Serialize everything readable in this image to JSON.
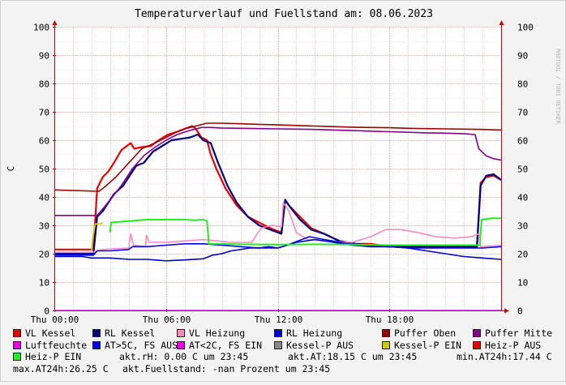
{
  "chart_data": {
    "type": "line",
    "title": "Temperaturverlauf und Fuellstand am: 08.06.2023",
    "ylabel": "C",
    "watermark": "RRDTOOL / TOBI OETIKER",
    "ylim": [
      0,
      100
    ],
    "y_ticks": [
      "0",
      "10",
      "20",
      "30",
      "40",
      "50",
      "60",
      "70",
      "80",
      "90",
      "100"
    ],
    "x_range_hours": [
      0,
      24
    ],
    "x_ticks": [
      {
        "label": "Thu 00:00",
        "hour": 0
      },
      {
        "label": "Thu 06:00",
        "hour": 6
      },
      {
        "label": "Thu 12:00",
        "hour": 12
      },
      {
        "label": "Thu 18:00",
        "hour": 18
      }
    ],
    "grid": true,
    "series": [
      {
        "name": "VL Kessel",
        "color": "#ee0000",
        "width": 2.2,
        "points": [
          [
            0,
            21.5
          ],
          [
            2.1,
            21.5
          ],
          [
            2.3,
            43
          ],
          [
            2.6,
            47
          ],
          [
            2.9,
            49
          ],
          [
            3.2,
            52
          ],
          [
            3.6,
            56.5
          ],
          [
            4.1,
            59
          ],
          [
            4.3,
            57
          ],
          [
            4.6,
            57.5
          ],
          [
            5.2,
            58
          ],
          [
            5.6,
            60
          ],
          [
            6.1,
            62
          ],
          [
            6.6,
            63
          ],
          [
            7,
            64
          ],
          [
            7.4,
            65
          ],
          [
            7.6,
            64
          ],
          [
            7.9,
            61
          ],
          [
            8.2,
            60
          ],
          [
            8.4,
            55
          ],
          [
            8.7,
            50
          ],
          [
            9.2,
            43
          ],
          [
            9.8,
            37
          ],
          [
            10.4,
            33
          ],
          [
            11,
            31
          ],
          [
            11.6,
            29
          ],
          [
            12.2,
            27.5
          ],
          [
            12.4,
            39
          ],
          [
            12.6,
            37
          ],
          [
            13.2,
            33
          ],
          [
            13.8,
            29
          ],
          [
            14.5,
            27
          ],
          [
            15.3,
            24.5
          ],
          [
            16.2,
            23.5
          ],
          [
            17,
            23.5
          ],
          [
            18,
            22.5
          ],
          [
            19.5,
            22.5
          ],
          [
            21,
            22.5
          ],
          [
            22.7,
            22.5
          ],
          [
            22.9,
            45
          ],
          [
            23.2,
            47
          ],
          [
            23.6,
            47.5
          ],
          [
            24,
            46
          ]
        ]
      },
      {
        "name": "RL Kessel",
        "color": "#000080",
        "width": 2.2,
        "points": [
          [
            0,
            20
          ],
          [
            2.1,
            20
          ],
          [
            2.3,
            33
          ],
          [
            2.6,
            35
          ],
          [
            2.9,
            38
          ],
          [
            3.2,
            41
          ],
          [
            3.7,
            44
          ],
          [
            4.1,
            48
          ],
          [
            4.4,
            51
          ],
          [
            4.8,
            52
          ],
          [
            5.3,
            56
          ],
          [
            5.8,
            58
          ],
          [
            6.3,
            60
          ],
          [
            6.8,
            60.5
          ],
          [
            7.3,
            61
          ],
          [
            7.7,
            62
          ],
          [
            8,
            60
          ],
          [
            8.4,
            59
          ],
          [
            8.8,
            52
          ],
          [
            9.3,
            44
          ],
          [
            9.8,
            38
          ],
          [
            10.4,
            33
          ],
          [
            11,
            30
          ],
          [
            11.6,
            28.5
          ],
          [
            12.2,
            27
          ],
          [
            12.4,
            39
          ],
          [
            12.6,
            37
          ],
          [
            13.2,
            32
          ],
          [
            13.8,
            28.5
          ],
          [
            14.5,
            27
          ],
          [
            15.3,
            24.5
          ],
          [
            16.2,
            23.5
          ],
          [
            17,
            23
          ],
          [
            18,
            22.5
          ],
          [
            19.5,
            22.5
          ],
          [
            21,
            22.5
          ],
          [
            22.7,
            22.5
          ],
          [
            22.9,
            44
          ],
          [
            23.2,
            47.5
          ],
          [
            23.6,
            48
          ],
          [
            24,
            46
          ]
        ]
      },
      {
        "name": "VL Heizung",
        "color": "#ff88bb",
        "width": 1.6,
        "points": [
          [
            0,
            20.5
          ],
          [
            2,
            20.5
          ],
          [
            2.6,
            21.5
          ],
          [
            4,
            22
          ],
          [
            4.1,
            27
          ],
          [
            4.25,
            23
          ],
          [
            4.9,
            22.5
          ],
          [
            4.95,
            26.5
          ],
          [
            5.1,
            24
          ],
          [
            6,
            24
          ],
          [
            7,
            24.5
          ],
          [
            8,
            25
          ],
          [
            9.5,
            24
          ],
          [
            10.6,
            24
          ],
          [
            11.1,
            29
          ],
          [
            11.7,
            30
          ],
          [
            12.2,
            29.5
          ],
          [
            12.3,
            38
          ],
          [
            12.6,
            35
          ],
          [
            13,
            27.5
          ],
          [
            13.6,
            25
          ],
          [
            14.5,
            24.5
          ],
          [
            16,
            24
          ],
          [
            17,
            26
          ],
          [
            17.8,
            28.5
          ],
          [
            18.6,
            28.5
          ],
          [
            19.5,
            27.5
          ],
          [
            20.5,
            26
          ],
          [
            21.5,
            25.5
          ],
          [
            22.4,
            26
          ],
          [
            22.8,
            27
          ],
          [
            22.9,
            22.5
          ],
          [
            24,
            23
          ]
        ]
      },
      {
        "name": "RL Heizung",
        "color": "#0000ee",
        "width": 1.6,
        "points": [
          [
            0,
            19.5
          ],
          [
            2.1,
            19.5
          ],
          [
            2.3,
            21
          ],
          [
            3,
            21
          ],
          [
            4,
            21.5
          ],
          [
            4.2,
            22.5
          ],
          [
            5,
            22.5
          ],
          [
            6,
            23
          ],
          [
            7,
            23.5
          ],
          [
            8,
            23.5
          ],
          [
            9,
            23
          ],
          [
            10,
            22.5
          ],
          [
            11,
            22
          ],
          [
            12,
            22
          ],
          [
            12.5,
            23
          ],
          [
            13.3,
            25
          ],
          [
            13.7,
            26
          ],
          [
            14.5,
            25
          ],
          [
            15.4,
            24
          ],
          [
            16.2,
            23
          ],
          [
            17,
            22.5
          ],
          [
            18,
            22.5
          ],
          [
            19,
            22
          ],
          [
            20,
            22
          ],
          [
            21,
            22
          ],
          [
            22,
            22
          ],
          [
            23,
            22
          ],
          [
            24,
            22.5
          ]
        ]
      },
      {
        "name": "Puffer Oben",
        "color": "#990000",
        "width": 1.6,
        "points": [
          [
            0,
            42.5
          ],
          [
            2.4,
            42
          ],
          [
            2.7,
            43.5
          ],
          [
            3.3,
            47
          ],
          [
            4,
            52
          ],
          [
            4.7,
            57
          ],
          [
            5.4,
            59
          ],
          [
            6,
            61
          ],
          [
            6.6,
            63
          ],
          [
            7,
            64
          ],
          [
            7.6,
            65
          ],
          [
            8.2,
            66
          ],
          [
            9,
            66
          ],
          [
            10,
            65.8
          ],
          [
            11,
            65.6
          ],
          [
            12,
            65.4
          ],
          [
            13,
            65.2
          ],
          [
            14,
            65
          ],
          [
            15,
            64.8
          ],
          [
            16,
            64.6
          ],
          [
            17,
            64.5
          ],
          [
            18,
            64.4
          ],
          [
            19,
            64.2
          ],
          [
            20,
            64.1
          ],
          [
            21,
            64
          ],
          [
            22,
            63.9
          ],
          [
            23,
            63.8
          ],
          [
            24,
            63.6
          ]
        ]
      },
      {
        "name": "Puffer Mitte",
        "color": "#880088",
        "width": 1.6,
        "points": [
          [
            0,
            33.5
          ],
          [
            2.3,
            33.5
          ],
          [
            2.5,
            35
          ],
          [
            3,
            39
          ],
          [
            3.6,
            44
          ],
          [
            4.2,
            50
          ],
          [
            4.8,
            54.5
          ],
          [
            5.4,
            57.5
          ],
          [
            6,
            60
          ],
          [
            6.6,
            62
          ],
          [
            7.3,
            63.5
          ],
          [
            7.9,
            64.5
          ],
          [
            8.4,
            64.5
          ],
          [
            9,
            64.3
          ],
          [
            10,
            64.2
          ],
          [
            11,
            64.1
          ],
          [
            12,
            64
          ],
          [
            13,
            63.9
          ],
          [
            14,
            63.8
          ],
          [
            15,
            63.6
          ],
          [
            16,
            63.4
          ],
          [
            17,
            63.2
          ],
          [
            18,
            63
          ],
          [
            19,
            62.8
          ],
          [
            20,
            62.6
          ],
          [
            21,
            62.5
          ],
          [
            22,
            62.3
          ],
          [
            22.6,
            62
          ],
          [
            22.8,
            57
          ],
          [
            23.2,
            54.5
          ],
          [
            23.6,
            53.5
          ],
          [
            24,
            53
          ]
        ]
      },
      {
        "name": "Luftfeuchte",
        "color": "#ee00ee",
        "width": 1.2,
        "points": [
          [
            0,
            0
          ],
          [
            24,
            0
          ]
        ]
      },
      {
        "name": "AT>5C, FS AUS",
        "color": "#0000cc",
        "width": 1.6,
        "points": [
          [
            0,
            19
          ],
          [
            1.5,
            19
          ],
          [
            2,
            18.5
          ],
          [
            3,
            18.5
          ],
          [
            4,
            18
          ],
          [
            5,
            18
          ],
          [
            6,
            17.5
          ],
          [
            7,
            17.8
          ],
          [
            8,
            18.2
          ],
          [
            8.5,
            19.5
          ],
          [
            9,
            20
          ],
          [
            9.5,
            21
          ],
          [
            10,
            21.5
          ],
          [
            10.5,
            22
          ],
          [
            11,
            22
          ],
          [
            11.5,
            22.5
          ],
          [
            12,
            22
          ],
          [
            12.5,
            23
          ],
          [
            13,
            24
          ],
          [
            13.5,
            24.5
          ],
          [
            14,
            25
          ],
          [
            15,
            24
          ],
          [
            16,
            23
          ],
          [
            17,
            22.5
          ],
          [
            18,
            22.5
          ],
          [
            19,
            22
          ],
          [
            19.5,
            21.5
          ],
          [
            20,
            21
          ],
          [
            21,
            20
          ],
          [
            22,
            19
          ],
          [
            23,
            18.5
          ],
          [
            24,
            18
          ]
        ]
      },
      {
        "name": "Heiz-P EIN",
        "color": "#22ee22",
        "width": 2.0,
        "points": [
          [
            3,
            27.5
          ],
          [
            3.05,
            31
          ],
          [
            4,
            31.5
          ],
          [
            5,
            32
          ],
          [
            6,
            32
          ],
          [
            7,
            32
          ],
          [
            7.5,
            31.8
          ],
          [
            8,
            32
          ],
          [
            8.2,
            31.5
          ],
          [
            8.3,
            23.5
          ],
          [
            10,
            23.3
          ],
          [
            12,
            23.2
          ],
          [
            14,
            23.3
          ],
          [
            16,
            23.2
          ],
          [
            18,
            23
          ],
          [
            20,
            23
          ],
          [
            22,
            23
          ],
          [
            22.85,
            23
          ],
          [
            22.95,
            32
          ],
          [
            23.5,
            32.5
          ],
          [
            24,
            32.5
          ]
        ]
      },
      {
        "name": "Kessel-P EIN",
        "color": "#cccc00",
        "width": 1.8,
        "points": [
          [
            2,
            21
          ],
          [
            2.1,
            27
          ],
          [
            2.2,
            30.5
          ],
          [
            2.5,
            30.5
          ],
          [
            2.6,
            31
          ]
        ]
      }
    ],
    "legend": [
      {
        "label": "VL Kessel",
        "color": "#ee0000"
      },
      {
        "label": "RL Kessel",
        "color": "#000080"
      },
      {
        "label": "VL Heizung",
        "color": "#ff88bb"
      },
      {
        "label": "RL Heizung",
        "color": "#0000ee"
      },
      {
        "label": "Puffer Oben",
        "color": "#990000"
      },
      {
        "label": "Puffer Mitte",
        "color": "#880088"
      },
      {
        "label": "Luftfeuchte",
        "color": "#ee00ee"
      },
      {
        "label": "AT>5C, FS AUS",
        "color": "#0000ee"
      },
      {
        "label": "AT<2C, FS EIN",
        "color": "#ee00ee"
      },
      {
        "label": "Kessel-P AUS",
        "color": "#888888"
      },
      {
        "label": "Kessel-P EIN",
        "color": "#cccc00"
      },
      {
        "label": "Heiz-P AUS",
        "color": "#ee0000"
      },
      {
        "label": "Heiz-P EIN",
        "color": "#22ee22"
      }
    ],
    "stats": {
      "akt_rh": "akt.rH: 0.00 C um 23:45",
      "akt_at": "akt.AT:18.15 C um 23:45",
      "min_at": "min.AT24h:17.44 C",
      "max_at": "max.AT24h:26.25 C",
      "fuellstand": "akt.Fuellstand: -nan Prozent um 23:45"
    }
  }
}
